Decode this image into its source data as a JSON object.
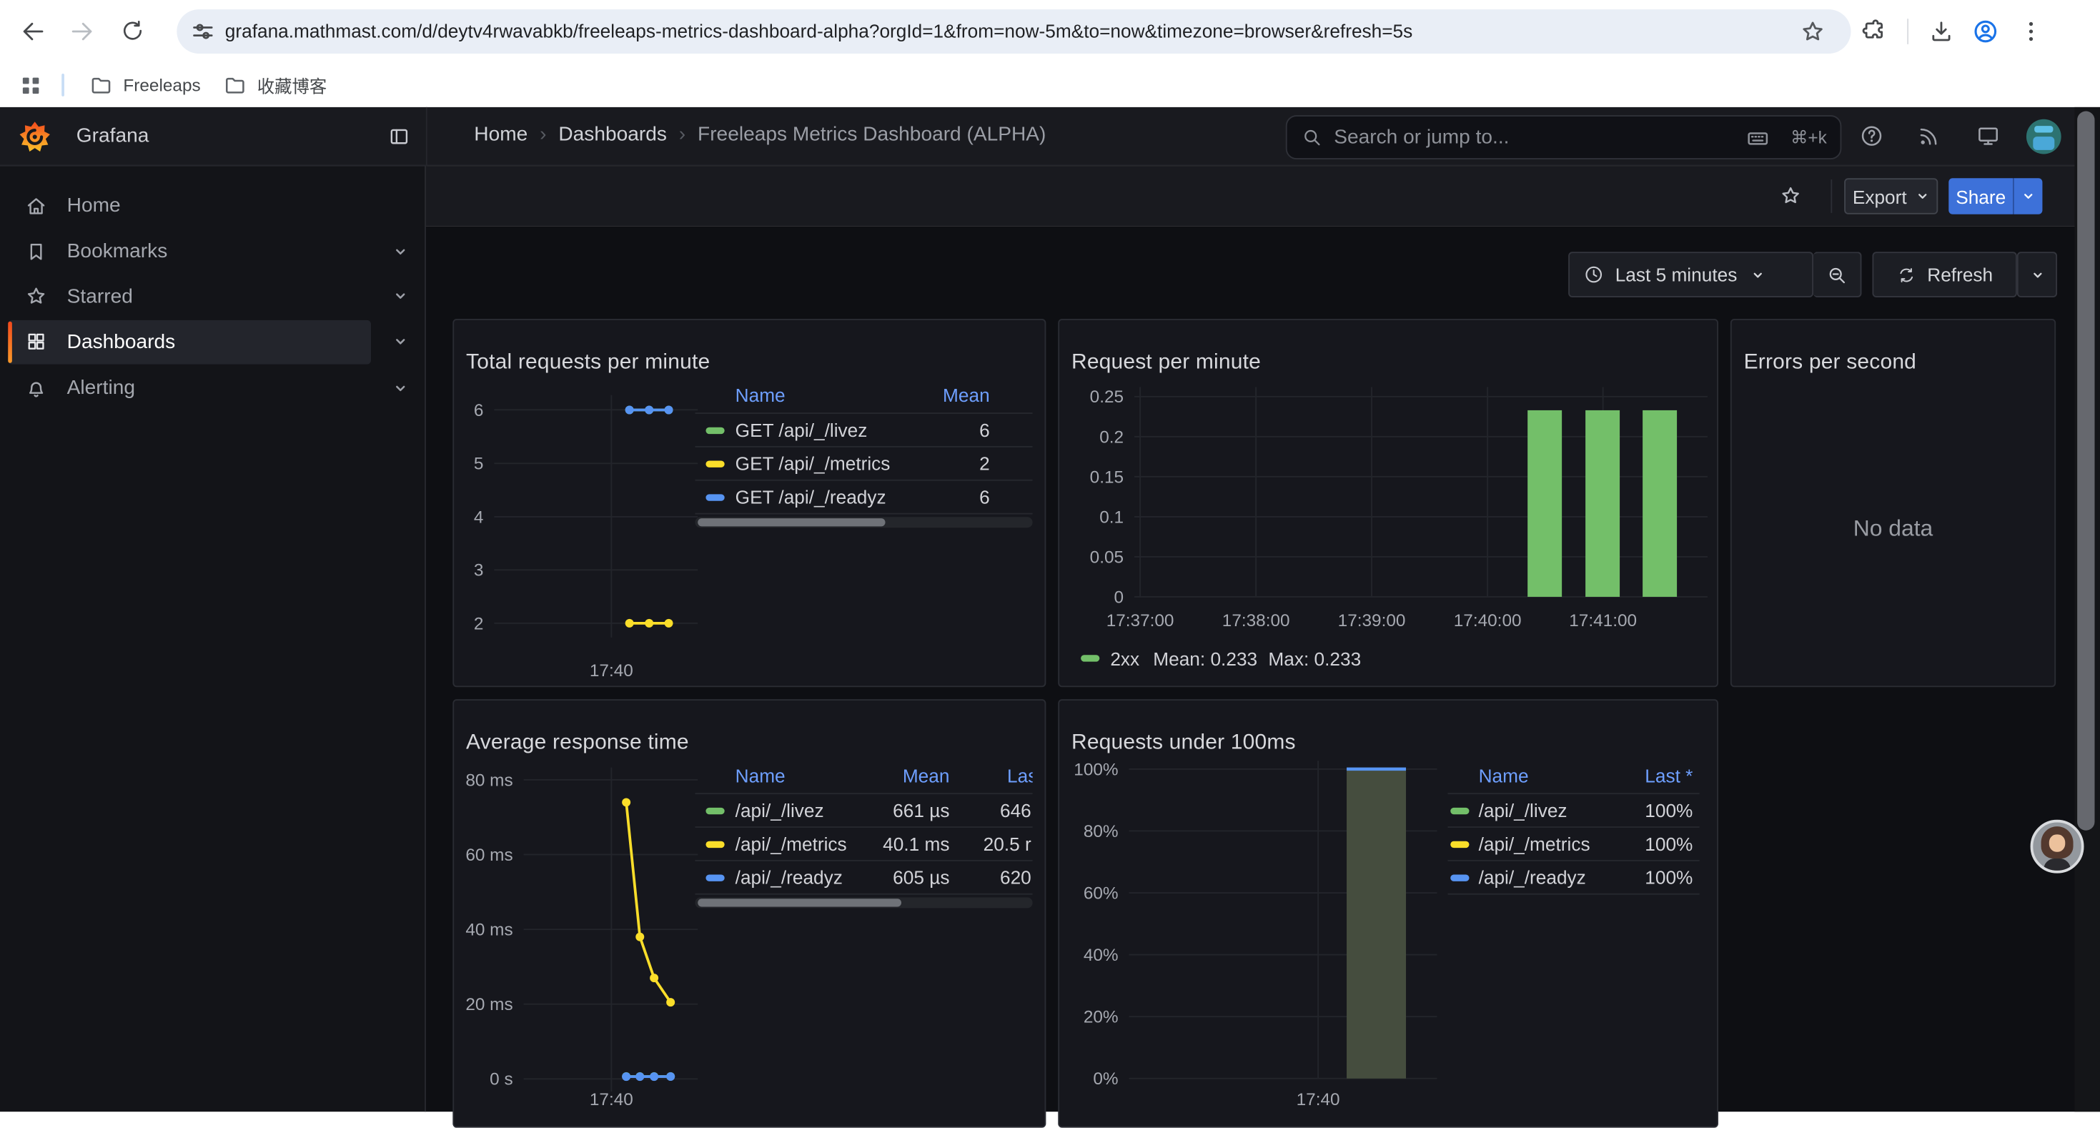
{
  "browser": {
    "url": "grafana.mathmast.com/d/deytv4rwavabkb/freeleaps-metrics-dashboard-alpha?orgId=1&from=now-5m&to=now&timezone=browser&refresh=5s",
    "bookmarks": [
      {
        "label": "Freeleaps"
      },
      {
        "label": "收藏博客"
      }
    ]
  },
  "grafana": {
    "brand": "Grafana",
    "breadcrumb": [
      "Home",
      "Dashboards",
      "Freeleaps Metrics Dashboard (ALPHA)"
    ],
    "search": {
      "placeholder": "Search or jump to...",
      "shortcut": "⌘+k"
    },
    "toolbar": {
      "export_label": "Export",
      "share_label": "Share"
    },
    "time": {
      "range_label": "Last 5 minutes",
      "refresh_label": "Refresh"
    },
    "sidebar": {
      "items": [
        {
          "label": "Home",
          "icon": "home",
          "chevron": false
        },
        {
          "label": "Bookmarks",
          "icon": "bookmark",
          "chevron": true
        },
        {
          "label": "Starred",
          "icon": "star",
          "chevron": true
        },
        {
          "label": "Dashboards",
          "icon": "grid",
          "chevron": true
        },
        {
          "label": "Alerting",
          "icon": "bell",
          "chevron": true
        }
      ],
      "active": "Dashboards"
    },
    "colors": {
      "accent_blue": "#3d71d9",
      "link_blue": "#6e9fff",
      "green": "#73bf69",
      "yellow": "#fade2a",
      "blue": "#5794f2"
    }
  },
  "chart_data": [
    {
      "panel_title": "Total requests per minute",
      "type": "line",
      "ylim": [
        2,
        6
      ],
      "yticks": [
        "6",
        "5",
        "4",
        "3",
        "2"
      ],
      "xticks": [
        "17:40"
      ],
      "grid": true,
      "legend_position": "right-table",
      "series": [
        {
          "name": "GET /api/_/livez",
          "color": "#73bf69",
          "values": [
            6,
            6,
            6
          ]
        },
        {
          "name": "GET /api/_/metrics",
          "color": "#fade2a",
          "values": [
            2,
            2,
            2
          ]
        },
        {
          "name": "GET /api/_/readyz",
          "color": "#5794f2",
          "values": [
            6,
            6,
            6
          ]
        }
      ],
      "legend_table": {
        "columns": [
          "Name",
          "Mean"
        ],
        "rows": [
          {
            "color": "#73bf69",
            "cells": [
              "GET /api/_/livez",
              "6"
            ]
          },
          {
            "color": "#fade2a",
            "cells": [
              "GET /api/_/metrics",
              "2"
            ]
          },
          {
            "color": "#5794f2",
            "cells": [
              "GET /api/_/readyz",
              "6"
            ]
          }
        ]
      }
    },
    {
      "panel_title": "Request per minute",
      "type": "bar",
      "ylim": [
        0,
        0.25
      ],
      "yticks": [
        "0.25",
        "0.2",
        "0.15",
        "0.1",
        "0.05",
        "0"
      ],
      "xticks": [
        "17:37:00",
        "17:38:00",
        "17:39:00",
        "17:40:00",
        "17:41:00"
      ],
      "grid": true,
      "bar_times_estimated": [
        "17:40:30",
        "17:41:00",
        "17:41:30"
      ],
      "series": [
        {
          "name": "2xx",
          "color": "#73bf69",
          "values": [
            0.233,
            0.233,
            0.233
          ]
        }
      ],
      "legend": {
        "name": "2xx",
        "mean_label": "Mean: 0.233",
        "max_label": "Max: 0.233"
      }
    },
    {
      "panel_title": "Errors per second",
      "type": "none",
      "message": "No data"
    },
    {
      "panel_title": "Average response time",
      "type": "line",
      "yticks": [
        "80 ms",
        "60 ms",
        "40 ms",
        "20 ms",
        "0 s"
      ],
      "xticks": [
        "17:40"
      ],
      "grid": true,
      "series": [
        {
          "name": "/api/_/livez",
          "color": "#73bf69",
          "values_ms": [
            0.661,
            0.661,
            0.661,
            0.646
          ]
        },
        {
          "name": "/api/_/metrics",
          "color": "#fade2a",
          "values_ms": [
            74,
            38,
            27,
            20.5
          ]
        },
        {
          "name": "/api/_/readyz",
          "color": "#5794f2",
          "values_ms": [
            0.605,
            0.605,
            0.605,
            0.62
          ]
        }
      ],
      "legend_table": {
        "columns": [
          "Name",
          "Mean",
          "Las"
        ],
        "rows": [
          {
            "color": "#73bf69",
            "cells": [
              "/api/_/livez",
              "661 µs",
              "646"
            ]
          },
          {
            "color": "#fade2a",
            "cells": [
              "/api/_/metrics",
              "40.1 ms",
              "20.5 r"
            ]
          },
          {
            "color": "#5794f2",
            "cells": [
              "/api/_/readyz",
              "605 µs",
              "620"
            ]
          }
        ]
      }
    },
    {
      "panel_title": "Requests under 100ms",
      "type": "bar",
      "ylim_percent": [
        0,
        100
      ],
      "yticks": [
        "100%",
        "80%",
        "60%",
        "40%",
        "20%",
        "0%"
      ],
      "xticks": [
        "17:40"
      ],
      "grid": true,
      "bar": {
        "value_percent": 100,
        "fill": "#454d3e",
        "top_line_color": "#5794f2"
      },
      "legend_table": {
        "columns": [
          "Name",
          "Last *"
        ],
        "rows": [
          {
            "color": "#73bf69",
            "cells": [
              "/api/_/livez",
              "100%"
            ]
          },
          {
            "color": "#fade2a",
            "cells": [
              "/api/_/metrics",
              "100%"
            ]
          },
          {
            "color": "#5794f2",
            "cells": [
              "/api/_/readyz",
              "100%"
            ]
          }
        ]
      }
    }
  ]
}
